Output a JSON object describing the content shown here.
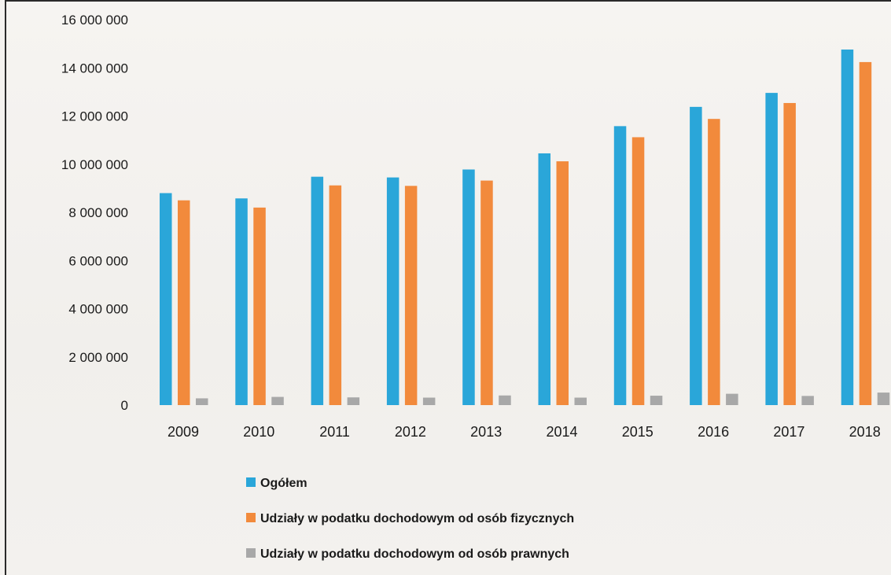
{
  "chart_data": {
    "type": "bar",
    "categories": [
      "2009",
      "2010",
      "2011",
      "2012",
      "2013",
      "2014",
      "2015",
      "2016",
      "2017",
      "2018"
    ],
    "series": [
      {
        "name": "Ogółem",
        "color": "#2aa6d9",
        "values": [
          8800000,
          8580000,
          9480000,
          9450000,
          9780000,
          10450000,
          11580000,
          12380000,
          12960000,
          14760000
        ]
      },
      {
        "name": "Udziały w podatku dochodowym od osób fizycznych",
        "color": "#f28a3c",
        "values": [
          8500000,
          8200000,
          9120000,
          9100000,
          9320000,
          10120000,
          11120000,
          11880000,
          12540000,
          14240000
        ]
      },
      {
        "name": "Udziały w podatku dochodowym od osób prawnych",
        "color": "#a8a8a8",
        "values": [
          280000,
          340000,
          320000,
          310000,
          400000,
          310000,
          390000,
          470000,
          380000,
          520000
        ]
      }
    ],
    "ylim": [
      0,
      16000000
    ],
    "yticks": [
      0,
      2000000,
      4000000,
      6000000,
      8000000,
      10000000,
      12000000,
      14000000,
      16000000
    ],
    "ytick_labels": [
      "0",
      "2 000 000",
      "4 000 000",
      "6 000 000",
      "8 000 000",
      "10 000 000",
      "12 000 000",
      "14 000 000",
      "16 000 000"
    ],
    "title": "",
    "xlabel": "",
    "ylabel": "",
    "grid": false,
    "legend_position": "bottom"
  }
}
